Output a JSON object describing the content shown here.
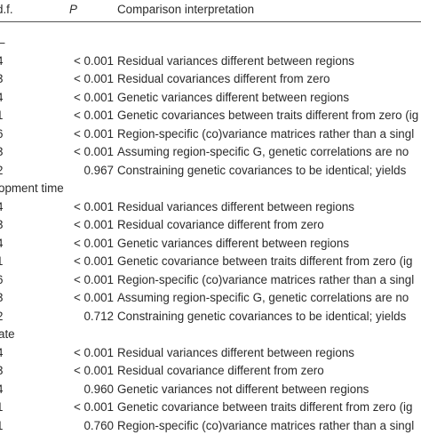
{
  "header": {
    "df": "d.f.",
    "p": "P",
    "interpretation": "Comparison interpretation"
  },
  "sections": [
    {
      "label": "–",
      "rows": [
        {
          "df": "4",
          "p": "< 0.001",
          "text": "Residual variances different between regions"
        },
        {
          "df": "3",
          "p": "< 0.001",
          "text": "Residual covariances different from zero"
        },
        {
          "df": "4",
          "p": "< 0.001",
          "text": "Genetic variances different between regions"
        },
        {
          "df": "1",
          "p": "< 0.001",
          "text": "Genetic covariances between traits different from zero (ig"
        },
        {
          "df": "6",
          "p": "< 0.001",
          "text": "Region-specific (co)variance matrices rather than a singl"
        },
        {
          "df": "3",
          "p": "< 0.001",
          "text": "Assuming region-specific G, genetic correlations are no"
        },
        {
          "df": "2",
          "p": "0.967",
          "text": "Constraining genetic covariances to be identical; yields"
        }
      ]
    },
    {
      "label": "opment time",
      "rows": [
        {
          "df": "4",
          "p": "< 0.001",
          "text": "Residual variances different between regions"
        },
        {
          "df": "3",
          "p": "< 0.001",
          "text": "Residual covariance different from zero"
        },
        {
          "df": "4",
          "p": "< 0.001",
          "text": "Genetic variances different between regions"
        },
        {
          "df": "1",
          "p": "< 0.001",
          "text": "Genetic covariance between traits different from zero (ig"
        },
        {
          "df": "6",
          "p": "< 0.001",
          "text": "Region-specific (co)variance matrices rather than a singl"
        },
        {
          "df": "3",
          "p": "< 0.001",
          "text": "Assuming region-specific G, genetic correlations are no"
        },
        {
          "df": "2",
          "p": "0.712",
          "text": "Constraining genetic covariances to be identical; yields"
        }
      ]
    },
    {
      "label": "ate",
      "rows": [
        {
          "df": "4",
          "p": "< 0.001",
          "text": "Residual variances different between regions"
        },
        {
          "df": "3",
          "p": "< 0.001",
          "text": "Residual covariance different from zero"
        },
        {
          "df": "4",
          "p": "0.960",
          "text": "Genetic variances not different between regions"
        },
        {
          "df": "1",
          "p": "< 0.001",
          "text": "Genetic covariance between traits different from zero (ig"
        },
        {
          "df": "1",
          "p": "0.760",
          "text": "Region-specific (co)variance matrices rather than a singl"
        }
      ]
    }
  ]
}
